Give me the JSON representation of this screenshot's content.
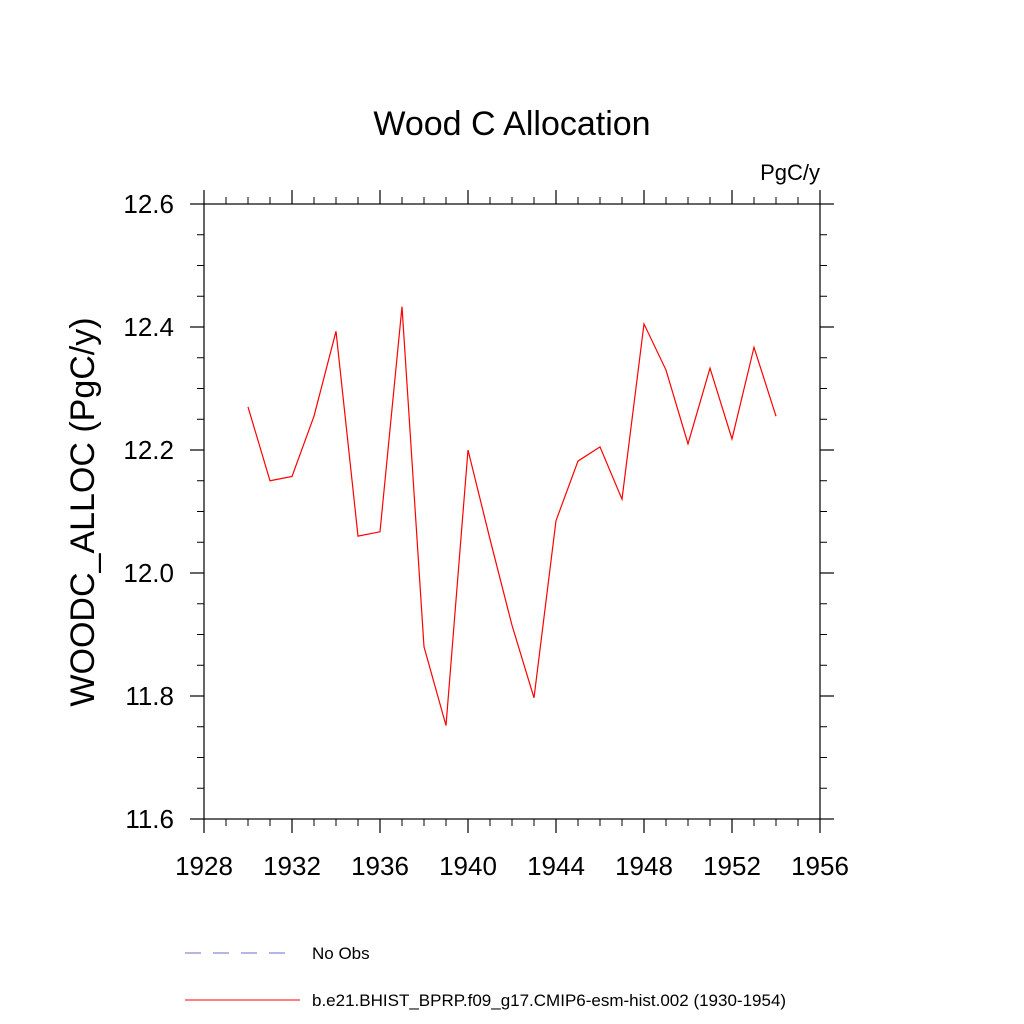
{
  "chart_data": {
    "type": "line",
    "title": "Wood C Allocation",
    "units": "PgC/y",
    "xlabel": "",
    "ylabel": "WOODC_ALLOC  (PgC/y)",
    "xlim": [
      1928,
      1956
    ],
    "ylim": [
      11.6,
      12.6
    ],
    "x_ticks": [
      1928,
      1932,
      1936,
      1940,
      1944,
      1948,
      1952,
      1956
    ],
    "y_ticks": [
      11.6,
      11.8,
      12.0,
      12.2,
      12.4,
      12.6
    ],
    "x_tick_labels": [
      "1928",
      "1932",
      "1936",
      "1940",
      "1944",
      "1948",
      "1952",
      "1956"
    ],
    "y_tick_labels": [
      "11.6",
      "11.8",
      "12.0",
      "12.2",
      "12.4",
      "12.6"
    ],
    "series": [
      {
        "name": "b.e21.BHIST_BPRP.f09_g17.CMIP6-esm-hist.002 (1930-1954)",
        "color": "#ff0000",
        "style": "solid",
        "x": [
          1930,
          1931,
          1932,
          1933,
          1934,
          1935,
          1936,
          1937,
          1938,
          1939,
          1940,
          1941,
          1942,
          1943,
          1944,
          1945,
          1946,
          1947,
          1948,
          1949,
          1950,
          1951,
          1952,
          1953,
          1954
        ],
        "values": [
          12.27,
          12.15,
          12.157,
          12.255,
          12.393,
          12.06,
          12.067,
          12.433,
          11.88,
          11.752,
          12.2,
          12.055,
          11.915,
          11.797,
          12.085,
          12.182,
          12.205,
          12.12,
          12.405,
          12.33,
          12.21,
          12.333,
          12.218,
          12.367,
          12.255
        ]
      }
    ],
    "legend": [
      {
        "label": "No Obs",
        "color": "#6b6bcc",
        "style": "dashed"
      },
      {
        "label": "b.e21.BHIST_BPRP.f09_g17.CMIP6-esm-hist.002 (1930-1954)",
        "color": "#ff0000",
        "style": "solid"
      }
    ]
  }
}
